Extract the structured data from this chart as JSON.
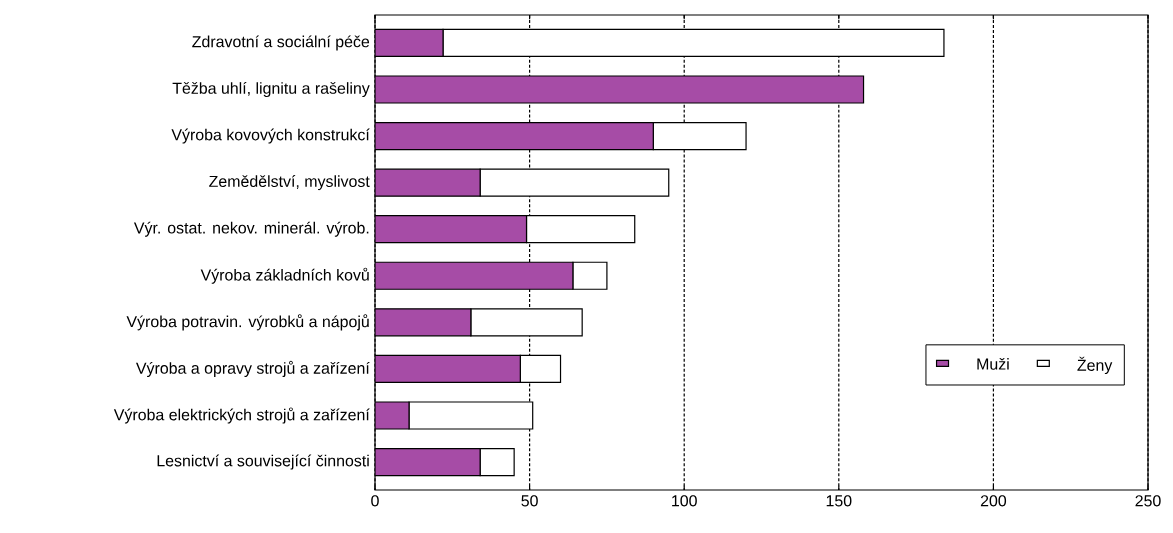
{
  "chart_data": {
    "type": "bar",
    "orientation": "horizontal",
    "stacked": true,
    "categories": [
      "Zdravotní a sociální péče",
      "Těžba uhlí, lignitu a rašeliny",
      "Výroba kovových konstrukcí",
      "Zemědělství, myslivost",
      "Výr. ostat. nekov. minerál. výrob.",
      "Výroba základních kovů",
      "Výroba potravin. výrobků a nápojů",
      "Výroba a opravy strojů a zařízení",
      "Výroba elektrických strojů a zařízení",
      "Lesnictví a související činnosti"
    ],
    "series": [
      {
        "name": "Muži",
        "color": "#a64ca6",
        "values": [
          22,
          158,
          90,
          34,
          49,
          64,
          31,
          47,
          11,
          34
        ]
      },
      {
        "name": "Ženy",
        "color": "#ffffff",
        "values": [
          162,
          0,
          30,
          61,
          35,
          11,
          36,
          13,
          40,
          11
        ]
      }
    ],
    "xlim": [
      0,
      250
    ],
    "xticks": [
      0,
      50,
      100,
      150,
      200,
      250
    ],
    "grid": "x",
    "legend": "bottom right"
  }
}
